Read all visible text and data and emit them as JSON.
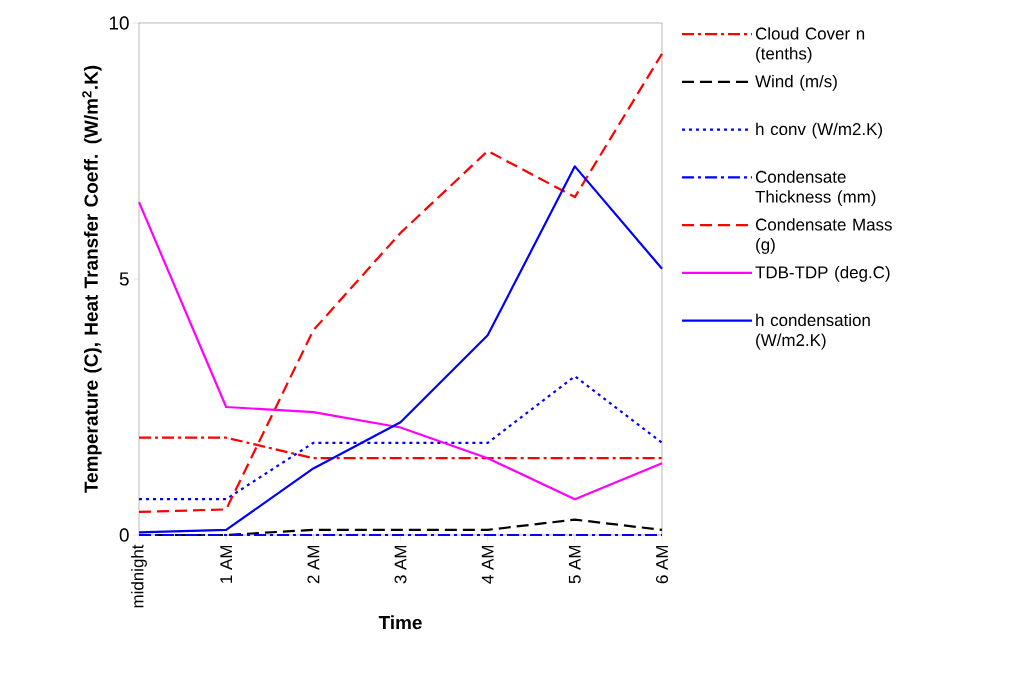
{
  "chart_data": {
    "type": "line",
    "xlabel": "Time",
    "ylabel": "Temperature (C), Heat Transfer Coeff. (W/m$^{2}$.K)",
    "categories": [
      "midnight",
      "1 AM",
      "2 AM",
      "3 AM",
      "4 AM",
      "5 AM",
      "6 AM"
    ],
    "series": [
      {
        "name": "Cloud Cover n (tenths)",
        "color": "#ff0000",
        "line_style": "dashdot",
        "values": [
          1.9,
          1.9,
          1.5,
          1.5,
          1.5,
          1.5,
          1.5
        ]
      },
      {
        "name": "Wind (m/s)",
        "color": "#000000",
        "line_style": "dashed",
        "values": [
          0,
          0,
          0.1,
          0.1,
          0.1,
          0.3,
          0.1
        ]
      },
      {
        "name": "h conv (W/m2.K)",
        "color": "#0000ff",
        "line_style": "dotted",
        "values": [
          0.7,
          0.7,
          1.8,
          1.8,
          1.8,
          3.1,
          1.8
        ]
      },
      {
        "name": "Condensate Thickness (mm)",
        "color": "#0000ff",
        "line_style": "dashdot",
        "values": [
          0,
          0,
          0,
          0,
          0,
          0,
          0
        ]
      },
      {
        "name": "Condensate Mass (g)",
        "color": "#ff0000",
        "line_style": "dashed",
        "values": [
          0.45,
          0.5,
          4.0,
          5.9,
          7.5,
          6.6,
          9.4
        ]
      },
      {
        "name": "TDB-TDP (deg.C)",
        "color": "#ff00ff",
        "line_style": "solid",
        "values": [
          6.5,
          2.5,
          2.4,
          2.1,
          1.5,
          0.7,
          1.4
        ]
      },
      {
        "name": "h condensation (W/m2.K)",
        "color": "#0000ff",
        "line_style": "solid",
        "values": [
          0.05,
          0.1,
          1.3,
          2.2,
          3.9,
          7.2,
          5.2
        ]
      }
    ],
    "ylim": [
      0,
      10
    ],
    "yticks": [
      0,
      5,
      10
    ],
    "grid": false,
    "legend": "right",
    "marker": "none"
  }
}
